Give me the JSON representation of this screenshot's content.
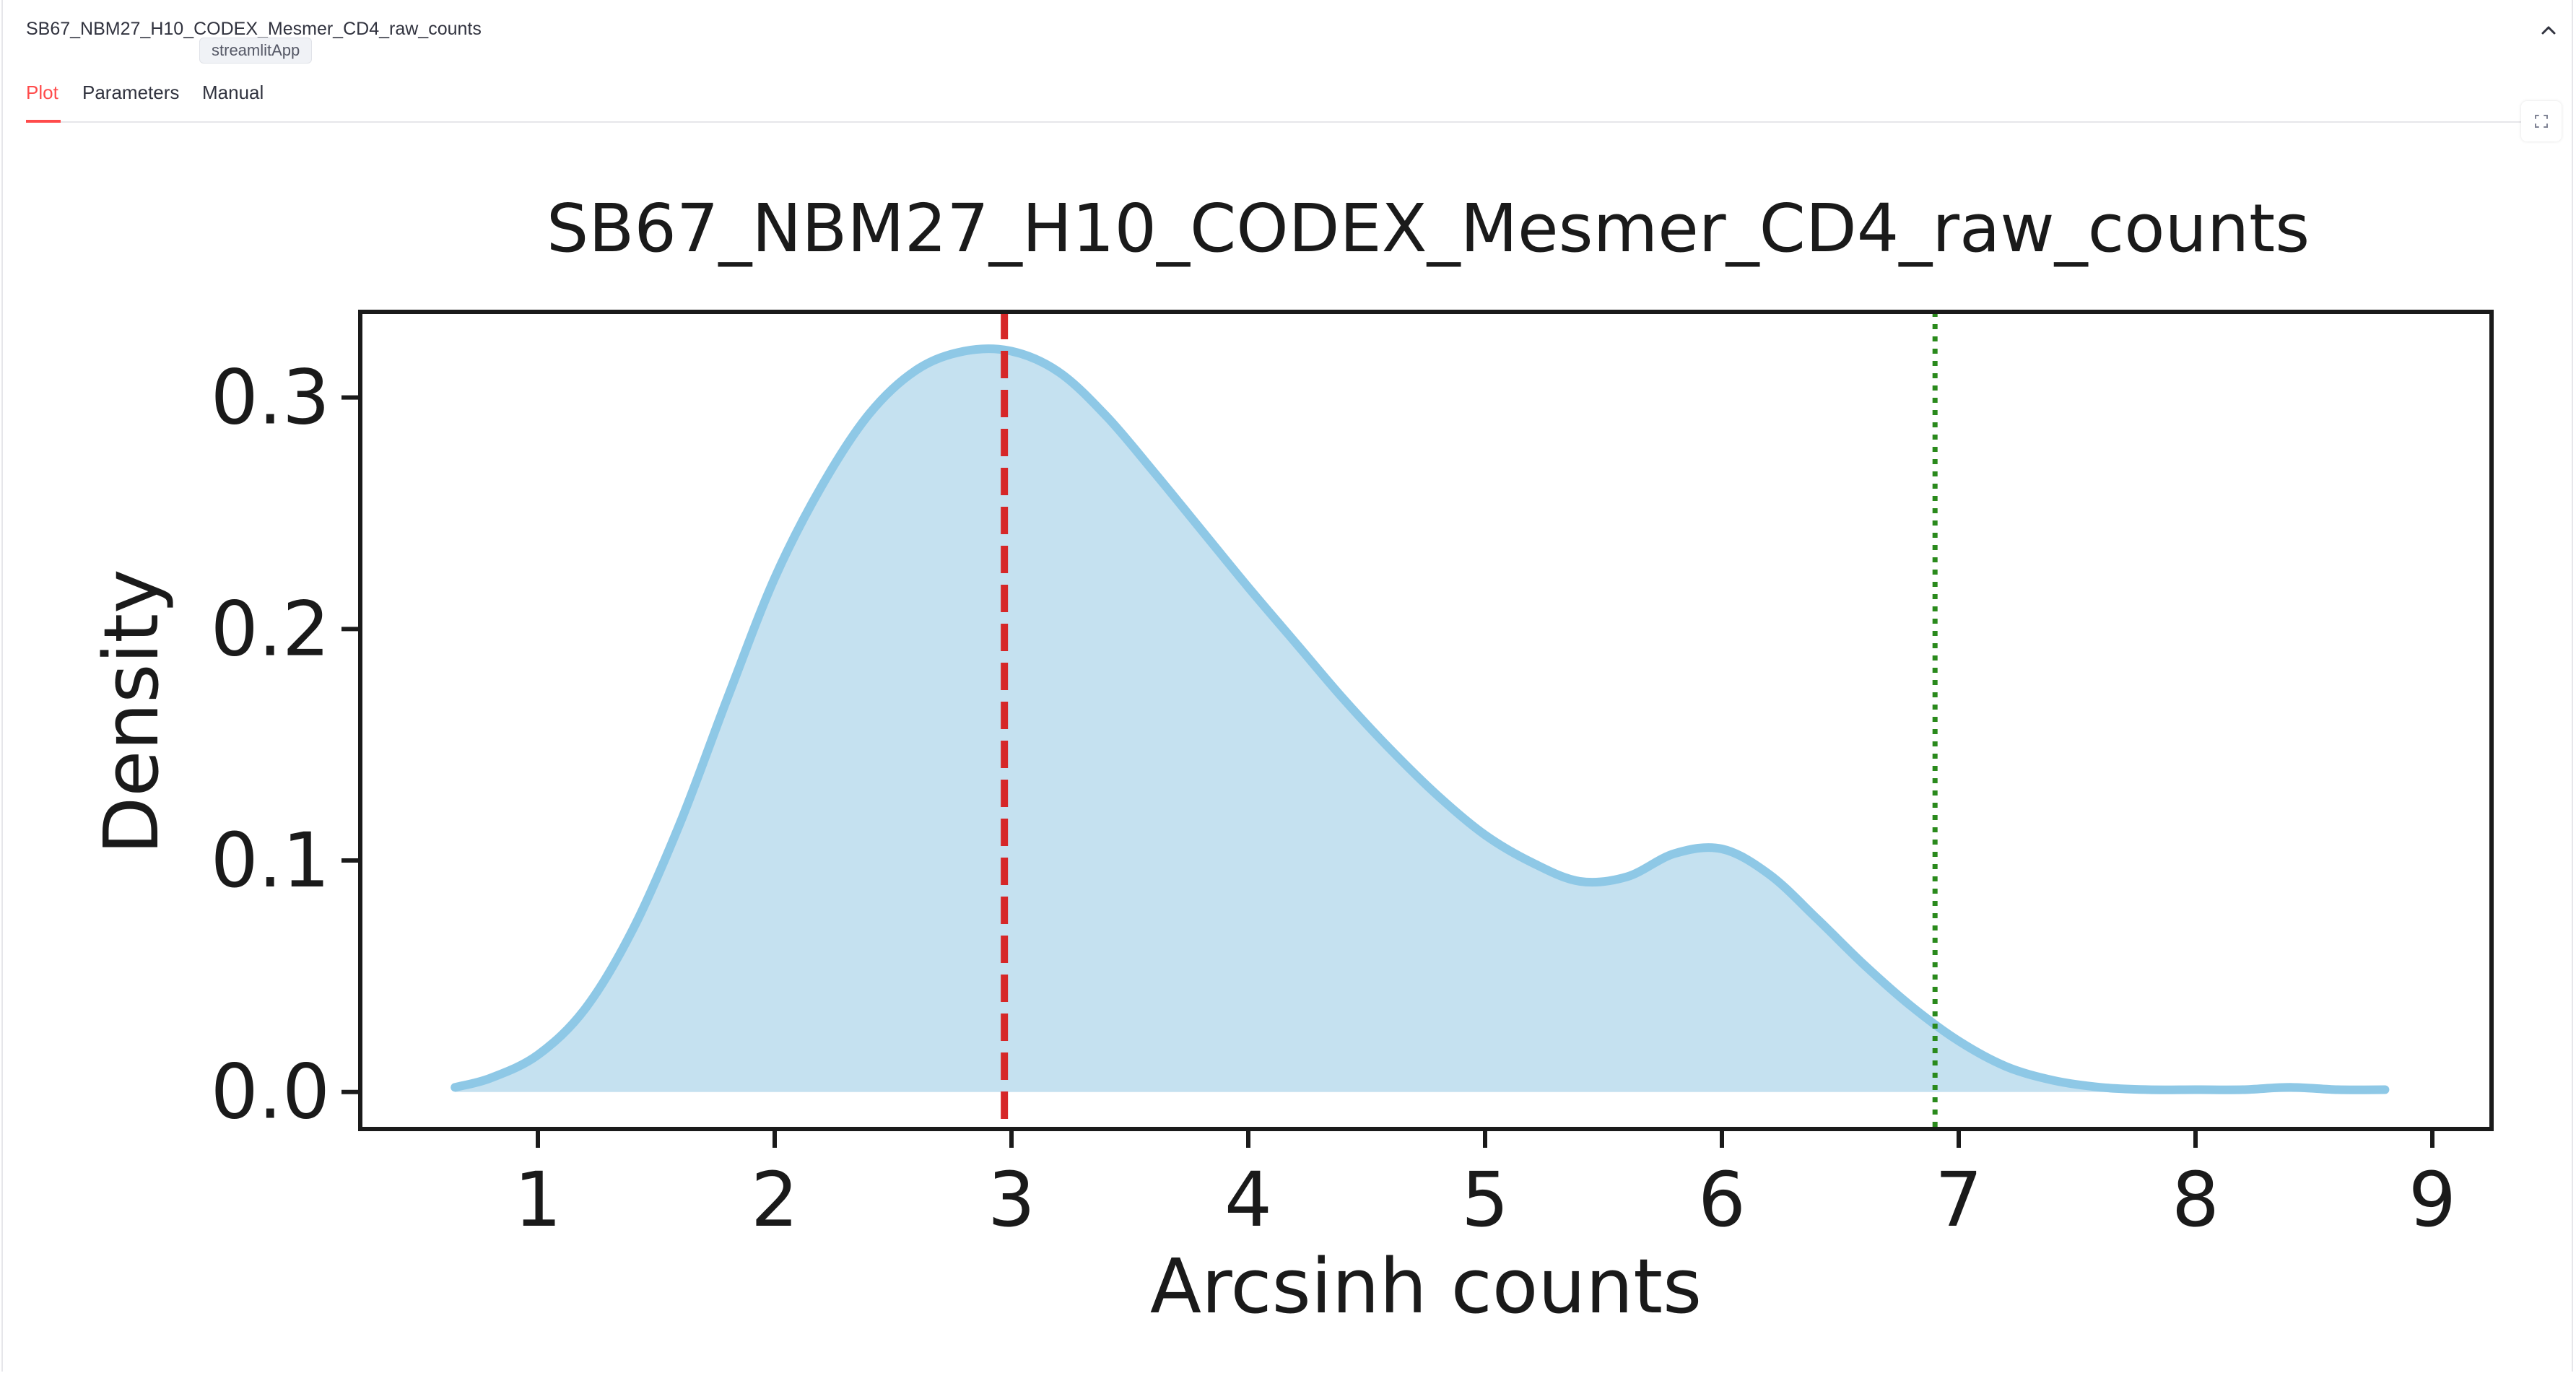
{
  "expander": {
    "title": "SB67_NBM27_H10_CODEX_Mesmer_CD4_raw_counts",
    "tooltip": "streamlitApp",
    "collapse_icon": "chevron-up-icon"
  },
  "tabs": [
    {
      "label": "Plot",
      "active": true
    },
    {
      "label": "Parameters",
      "active": false
    },
    {
      "label": "Manual",
      "active": false
    }
  ],
  "toolbar": {
    "fullscreen_icon": "fullscreen-icon"
  },
  "colors": {
    "accent": "#ff4b4b",
    "density_fill": "#c5e1f0",
    "density_line": "#8ec8e6",
    "mode_line": "#d62728",
    "threshold_line": "#2a8a1c"
  },
  "chart_data": {
    "type": "area",
    "title": "SB67_NBM27_H10_CODEX_Mesmer_CD4_raw_counts",
    "xlabel": "Arcsinh counts",
    "ylabel": "Density",
    "xlim": [
      0.25,
      9.25
    ],
    "ylim": [
      -0.016,
      0.337
    ],
    "x_ticks": [
      "1",
      "2",
      "3",
      "4",
      "5",
      "6",
      "7",
      "8",
      "9"
    ],
    "y_ticks": [
      "0.0",
      "0.1",
      "0.2",
      "0.3"
    ],
    "grid": false,
    "series": [
      {
        "x": [
          0.65,
          0.8,
          1.0,
          1.2,
          1.4,
          1.6,
          1.8,
          2.0,
          2.2,
          2.4,
          2.6,
          2.8,
          3.0,
          3.2,
          3.4,
          3.6,
          3.8,
          4.0,
          4.2,
          4.4,
          4.6,
          4.8,
          5.0,
          5.2,
          5.4,
          5.6,
          5.8,
          6.0,
          6.2,
          6.4,
          6.6,
          6.8,
          7.0,
          7.2,
          7.4,
          7.6,
          7.8,
          8.0,
          8.2,
          8.4,
          8.6,
          8.8
        ],
        "values": [
          0.002,
          0.006,
          0.016,
          0.036,
          0.07,
          0.116,
          0.17,
          0.222,
          0.262,
          0.293,
          0.312,
          0.32,
          0.32,
          0.311,
          0.292,
          0.268,
          0.243,
          0.218,
          0.194,
          0.17,
          0.148,
          0.128,
          0.111,
          0.099,
          0.091,
          0.093,
          0.103,
          0.105,
          0.094,
          0.075,
          0.055,
          0.037,
          0.022,
          0.011,
          0.005,
          0.002,
          0.001,
          0.001,
          0.001,
          0.002,
          0.001,
          0.001
        ]
      }
    ],
    "vlines": [
      {
        "x": 2.97,
        "style": "dashed",
        "color": "#d62728"
      },
      {
        "x": 6.9,
        "style": "dotted",
        "color": "#2a8a1c"
      }
    ]
  }
}
